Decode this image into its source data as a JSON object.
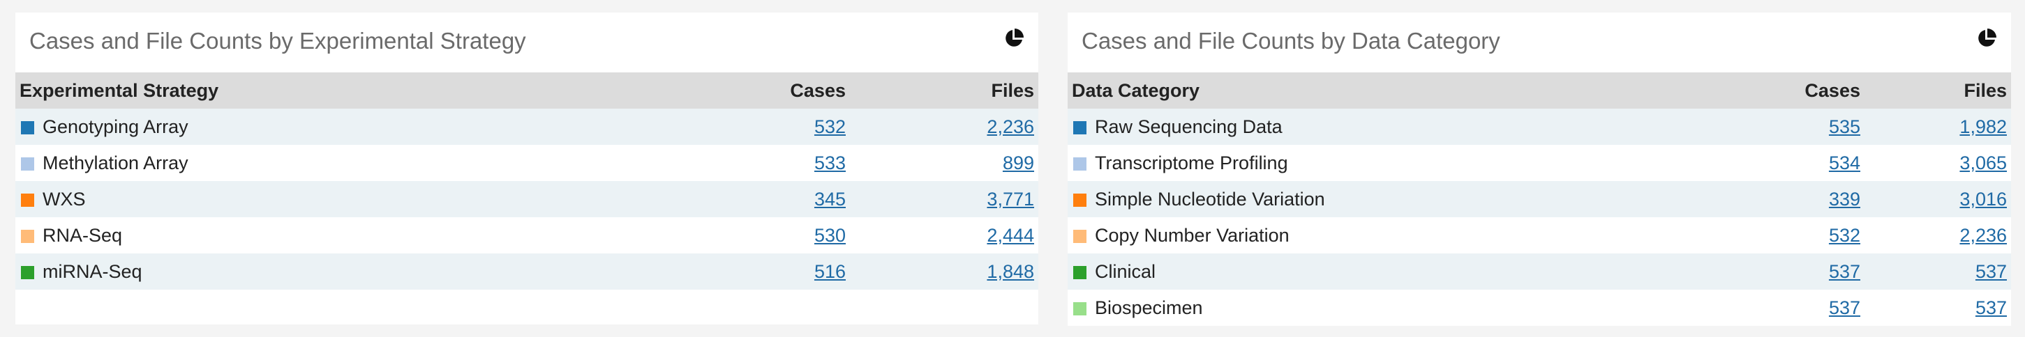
{
  "left_panel": {
    "title": "Cases and File Counts by Experimental Strategy",
    "headers": {
      "name": "Experimental Strategy",
      "cases": "Cases",
      "files": "Files"
    },
    "rows": [
      {
        "label": "Genotyping Array",
        "cases": "532",
        "files": "2,236",
        "color": "#1f77b4"
      },
      {
        "label": "Methylation Array",
        "cases": "533",
        "files": "899",
        "color": "#aec7e8"
      },
      {
        "label": "WXS",
        "cases": "345",
        "files": "3,771",
        "color": "#ff7f0e"
      },
      {
        "label": "RNA-Seq",
        "cases": "530",
        "files": "2,444",
        "color": "#ffbb78"
      },
      {
        "label": "miRNA-Seq",
        "cases": "516",
        "files": "1,848",
        "color": "#2ca02c"
      }
    ]
  },
  "right_panel": {
    "title": "Cases and File Counts by Data Category",
    "headers": {
      "name": "Data Category",
      "cases": "Cases",
      "files": "Files"
    },
    "rows": [
      {
        "label": "Raw Sequencing Data",
        "cases": "535",
        "files": "1,982",
        "color": "#1f77b4"
      },
      {
        "label": "Transcriptome Profiling",
        "cases": "534",
        "files": "3,065",
        "color": "#aec7e8"
      },
      {
        "label": "Simple Nucleotide Variation",
        "cases": "339",
        "files": "3,016",
        "color": "#ff7f0e"
      },
      {
        "label": "Copy Number Variation",
        "cases": "532",
        "files": "2,236",
        "color": "#ffbb78"
      },
      {
        "label": "Clinical",
        "cases": "537",
        "files": "537",
        "color": "#2ca02c"
      },
      {
        "label": "Biospecimen",
        "cases": "537",
        "files": "537",
        "color": "#98df8a"
      }
    ]
  },
  "icons": {
    "chart_toggle": "pie-chart-icon"
  }
}
